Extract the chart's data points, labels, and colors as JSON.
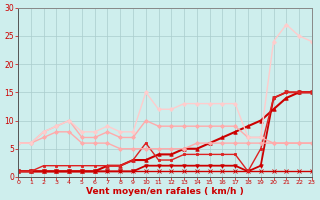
{
  "xlabel": "Vent moyen/en rafales ( km/h )",
  "bg_color": "#ceeeed",
  "grid_color": "#aacccc",
  "xlim": [
    0,
    23
  ],
  "ylim": [
    0,
    30
  ],
  "xticks": [
    0,
    1,
    2,
    3,
    4,
    5,
    6,
    7,
    8,
    9,
    10,
    11,
    12,
    13,
    14,
    15,
    16,
    17,
    18,
    19,
    20,
    21,
    22,
    23
  ],
  "yticks": [
    0,
    5,
    10,
    15,
    20,
    25,
    30
  ],
  "series": [
    {
      "x": [
        0,
        1,
        2,
        3,
        4,
        5,
        6,
        7,
        8,
        9,
        10,
        11,
        12,
        13,
        14,
        15,
        16,
        17,
        18,
        19,
        20,
        21,
        22,
        23
      ],
      "y": [
        1,
        1,
        1,
        1,
        1,
        1,
        1,
        1,
        1,
        1,
        1,
        1,
        1,
        1,
        1,
        1,
        1,
        1,
        1,
        1,
        1,
        1,
        1,
        1
      ],
      "color": "#cc0000",
      "lw": 1.0,
      "marker": "x",
      "ms": 2.5
    },
    {
      "x": [
        0,
        1,
        2,
        3,
        4,
        5,
        6,
        7,
        8,
        9,
        10,
        11,
        12,
        13,
        14,
        15,
        16,
        17,
        18,
        19,
        20,
        21,
        22,
        23
      ],
      "y": [
        1,
        1,
        1,
        1,
        1,
        1,
        1,
        1,
        1,
        1,
        2,
        2,
        2,
        2,
        2,
        2,
        2,
        2,
        1,
        2,
        14,
        15,
        15,
        15
      ],
      "color": "#cc0000",
      "lw": 1.3,
      "marker": "v",
      "ms": 2.5
    },
    {
      "x": [
        0,
        1,
        2,
        3,
        4,
        5,
        6,
        7,
        8,
        9,
        10,
        11,
        12,
        13,
        14,
        15,
        16,
        17,
        18,
        19,
        20,
        21,
        22,
        23
      ],
      "y": [
        1,
        1,
        1,
        1,
        1,
        1,
        1,
        2,
        2,
        3,
        3,
        4,
        4,
        5,
        5,
        6,
        7,
        8,
        9,
        10,
        12,
        14,
        15,
        15
      ],
      "color": "#cc0000",
      "lw": 1.5,
      "marker": "^",
      "ms": 2.5
    },
    {
      "x": [
        0,
        1,
        2,
        3,
        4,
        5,
        6,
        7,
        8,
        9,
        10,
        11,
        12,
        13,
        14,
        15,
        16,
        17,
        18,
        19,
        20,
        21,
        22,
        23
      ],
      "y": [
        1,
        1,
        2,
        2,
        2,
        2,
        2,
        2,
        2,
        3,
        6,
        3,
        3,
        4,
        4,
        4,
        4,
        4,
        1,
        5,
        14,
        15,
        15,
        15
      ],
      "color": "#dd2222",
      "lw": 1.0,
      "marker": "s",
      "ms": 2.0
    },
    {
      "x": [
        0,
        1,
        2,
        3,
        4,
        5,
        6,
        7,
        8,
        9,
        10,
        11,
        12,
        13,
        14,
        15,
        16,
        17,
        18,
        19,
        20,
        21,
        22,
        23
      ],
      "y": [
        6,
        6,
        7,
        8,
        8,
        6,
        6,
        6,
        5,
        5,
        5,
        5,
        5,
        5,
        6,
        6,
        6,
        6,
        6,
        6,
        6,
        6,
        6,
        6
      ],
      "color": "#ffaaaa",
      "lw": 1.0,
      "marker": "D",
      "ms": 2.0
    },
    {
      "x": [
        0,
        1,
        2,
        3,
        4,
        5,
        6,
        7,
        8,
        9,
        10,
        11,
        12,
        13,
        14,
        15,
        16,
        17,
        18,
        19,
        20,
        21,
        22,
        23
      ],
      "y": [
        6,
        6,
        8,
        9,
        10,
        7,
        7,
        8,
        7,
        7,
        10,
        9,
        9,
        9,
        9,
        9,
        9,
        9,
        7,
        7,
        6,
        6,
        6,
        6
      ],
      "color": "#ffaaaa",
      "lw": 1.0,
      "marker": "D",
      "ms": 2.0
    },
    {
      "x": [
        0,
        1,
        2,
        3,
        4,
        5,
        6,
        7,
        8,
        9,
        10,
        11,
        12,
        13,
        14,
        15,
        16,
        17,
        18,
        19,
        20,
        21,
        22,
        23
      ],
      "y": [
        6,
        6,
        8,
        9,
        10,
        8,
        8,
        9,
        8,
        8,
        15,
        12,
        12,
        13,
        13,
        13,
        13,
        13,
        7,
        7,
        24,
        27,
        25,
        24
      ],
      "color": "#ffcccc",
      "lw": 1.0,
      "marker": "D",
      "ms": 2.0
    }
  ]
}
